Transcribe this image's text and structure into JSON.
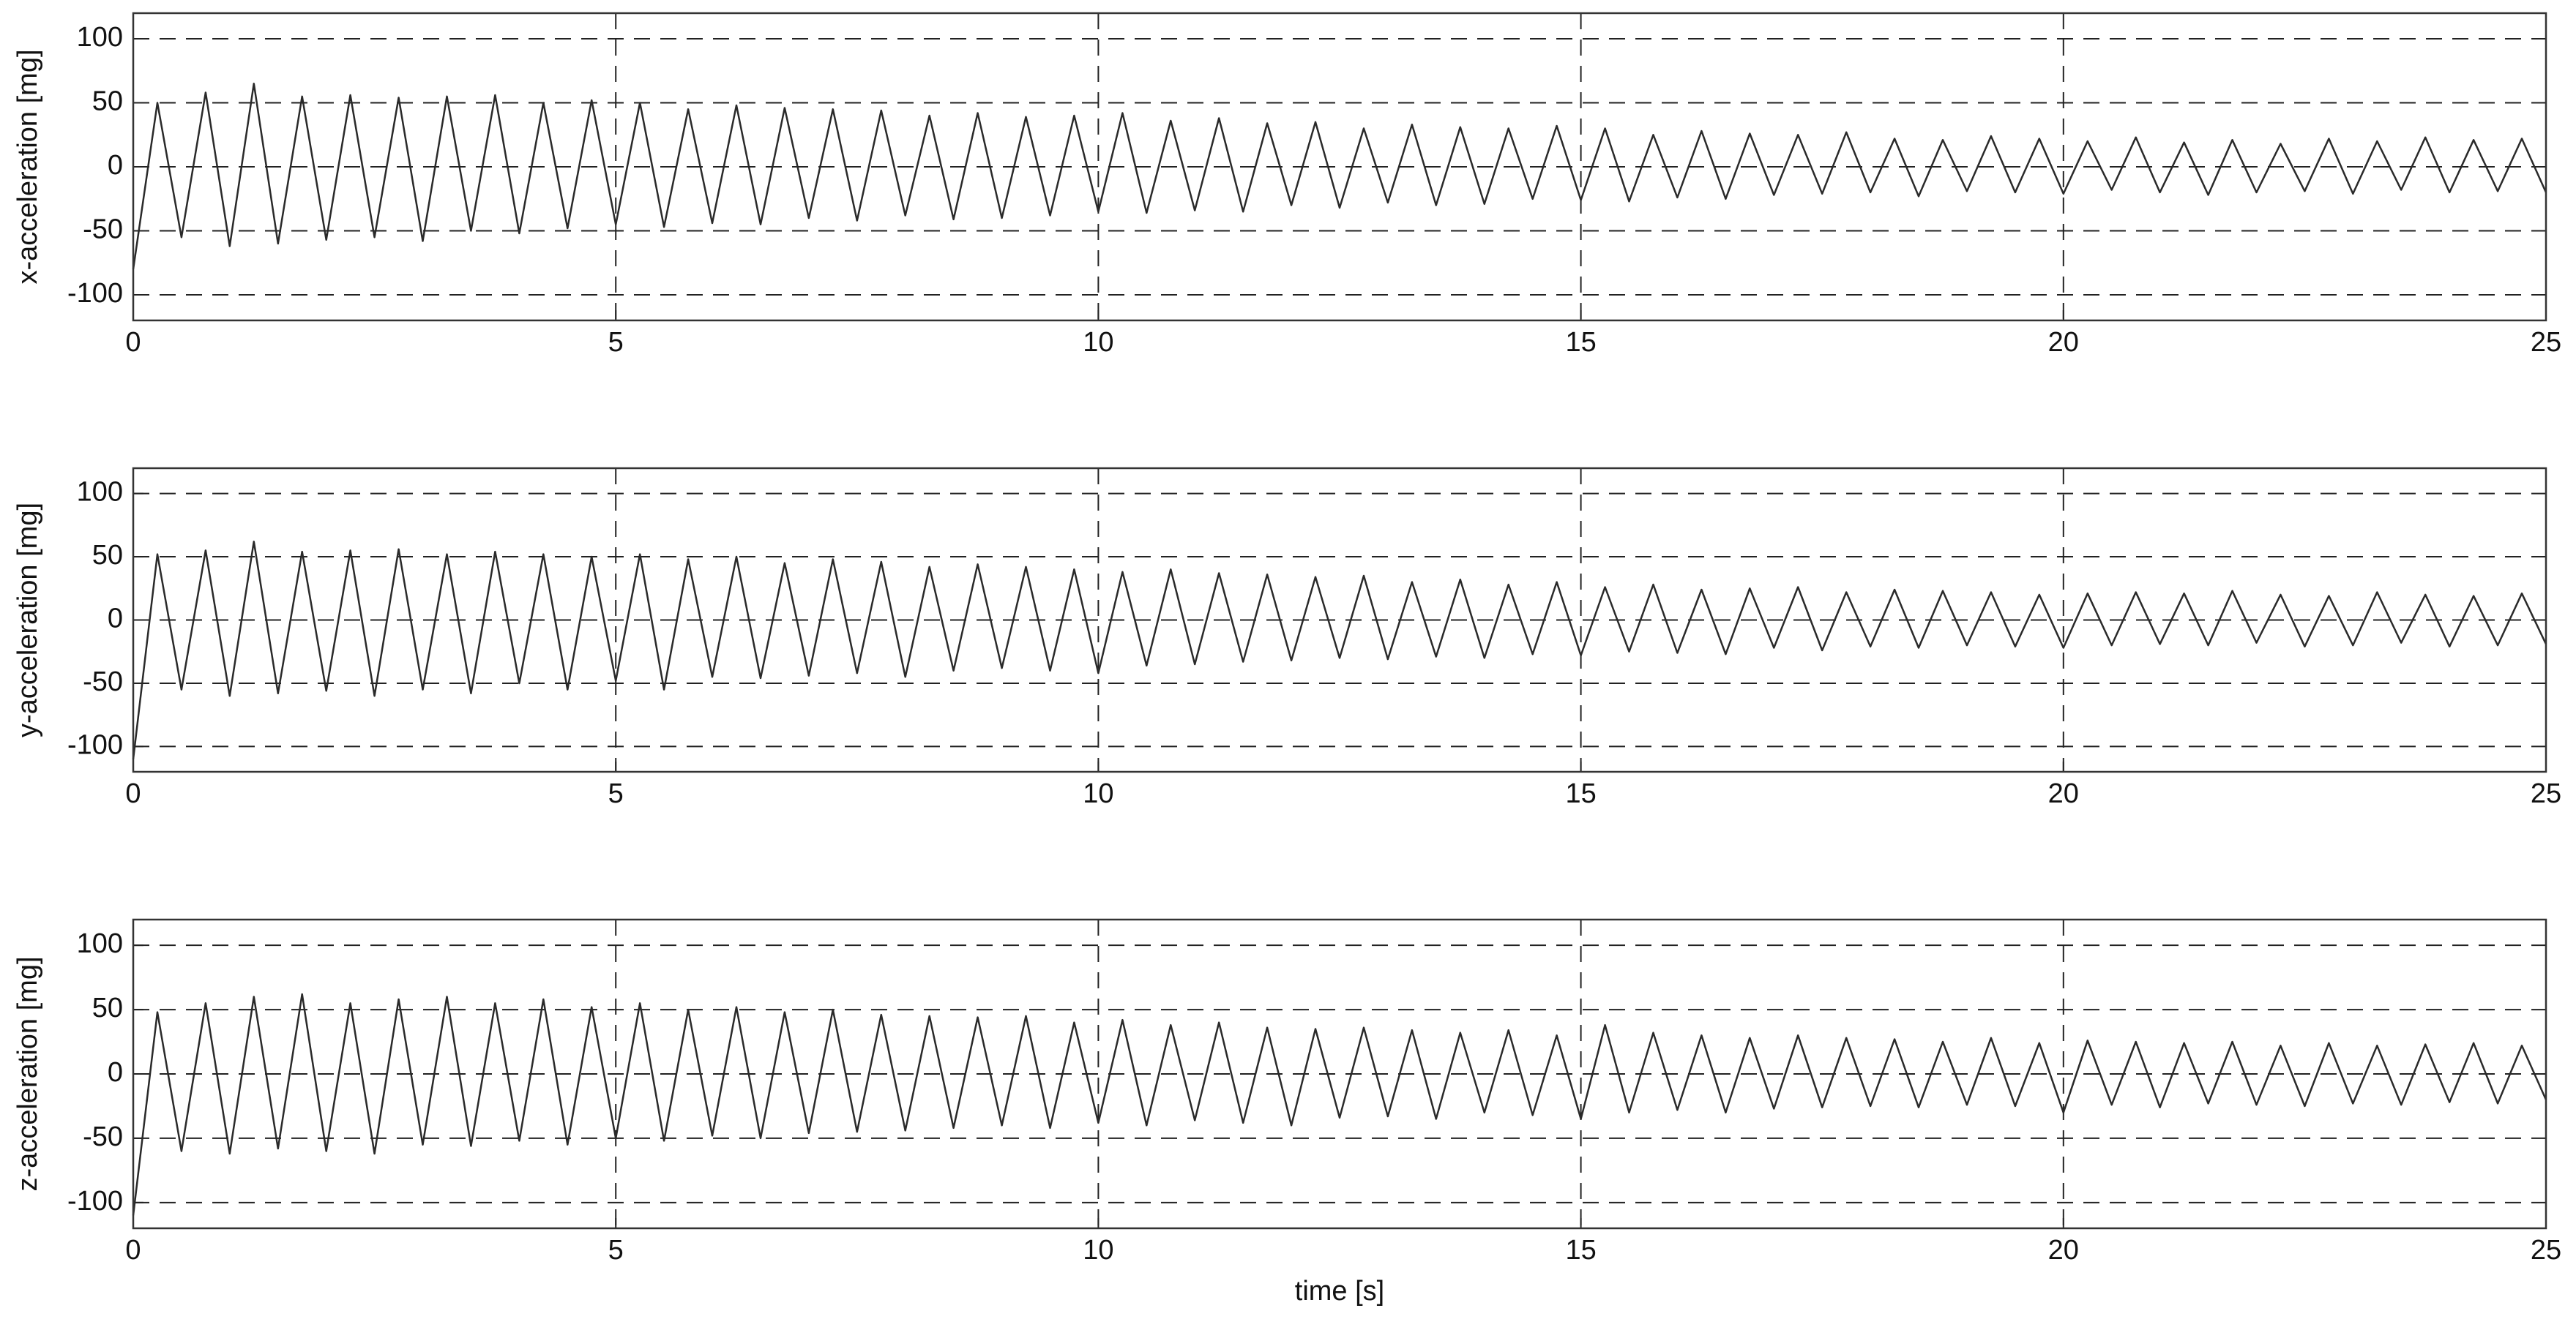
{
  "chart_data": [
    {
      "type": "line",
      "ylabel": "x-acceleration [mg]",
      "xlim": [
        0,
        25
      ],
      "ylim": [
        -120,
        120
      ],
      "xticks": [
        0,
        5,
        10,
        15,
        20,
        25
      ],
      "yticks": [
        -100,
        -50,
        0,
        50,
        100
      ],
      "grid": true,
      "x": [
        0,
        0.25,
        0.5,
        0.75,
        1,
        1.25,
        1.5,
        1.75,
        2,
        2.25,
        2.5,
        2.75,
        3,
        3.25,
        3.5,
        3.75,
        4,
        4.25,
        4.5,
        4.75,
        5,
        5.25,
        5.5,
        5.75,
        6,
        6.25,
        6.5,
        6.75,
        7,
        7.25,
        7.5,
        7.75,
        8,
        8.25,
        8.5,
        8.75,
        9,
        9.25,
        9.5,
        9.75,
        10,
        10.25,
        10.5,
        10.75,
        11,
        11.25,
        11.5,
        11.75,
        12,
        12.25,
        12.5,
        12.75,
        13,
        13.25,
        13.5,
        13.75,
        14,
        14.25,
        14.5,
        14.75,
        15,
        15.25,
        15.5,
        15.75,
        16,
        16.25,
        16.5,
        16.75,
        17,
        17.25,
        17.5,
        17.75,
        18,
        18.25,
        18.5,
        18.75,
        19,
        19.25,
        19.5,
        19.75,
        20,
        20.25,
        20.5,
        20.75,
        21,
        21.25,
        21.5,
        21.75,
        22,
        22.25,
        22.5,
        22.75,
        23,
        23.25,
        23.5,
        23.75,
        24,
        24.25,
        24.5,
        24.75,
        25
      ],
      "series": [
        {
          "name": "x-acceleration",
          "color": "#2a2a2a",
          "values": [
            -80,
            50,
            -55,
            58,
            -62,
            65,
            -60,
            55,
            -57,
            56,
            -55,
            54,
            -58,
            55,
            -50,
            56,
            -52,
            50,
            -48,
            52,
            -45,
            50,
            -47,
            45,
            -44,
            48,
            -45,
            46,
            -40,
            45,
            -42,
            44,
            -38,
            40,
            -41,
            42,
            -40,
            39,
            -38,
            40,
            -35,
            42,
            -36,
            36,
            -34,
            38,
            -35,
            34,
            -30,
            35,
            -32,
            30,
            -28,
            33,
            -30,
            31,
            -29,
            30,
            -25,
            32,
            -26,
            30,
            -27,
            25,
            -24,
            28,
            -25,
            26,
            -22,
            25,
            -21,
            27,
            -20,
            22,
            -23,
            21,
            -19,
            24,
            -20,
            22,
            -21,
            20,
            -18,
            23,
            -20,
            19,
            -22,
            21,
            -20,
            18,
            -19,
            22,
            -21,
            20,
            -18,
            23,
            -20,
            21,
            -19,
            22,
            -20
          ]
        }
      ]
    },
    {
      "type": "line",
      "ylabel": "y-acceleration [mg]",
      "xlim": [
        0,
        25
      ],
      "ylim": [
        -120,
        120
      ],
      "xticks": [
        0,
        5,
        10,
        15,
        20,
        25
      ],
      "yticks": [
        -100,
        -50,
        0,
        50,
        100
      ],
      "grid": true,
      "x": [
        0,
        0.25,
        0.5,
        0.75,
        1,
        1.25,
        1.5,
        1.75,
        2,
        2.25,
        2.5,
        2.75,
        3,
        3.25,
        3.5,
        3.75,
        4,
        4.25,
        4.5,
        4.75,
        5,
        5.25,
        5.5,
        5.75,
        6,
        6.25,
        6.5,
        6.75,
        7,
        7.25,
        7.5,
        7.75,
        8,
        8.25,
        8.5,
        8.75,
        9,
        9.25,
        9.5,
        9.75,
        10,
        10.25,
        10.5,
        10.75,
        11,
        11.25,
        11.5,
        11.75,
        12,
        12.25,
        12.5,
        12.75,
        13,
        13.25,
        13.5,
        13.75,
        14,
        14.25,
        14.5,
        14.75,
        15,
        15.25,
        15.5,
        15.75,
        16,
        16.25,
        16.5,
        16.75,
        17,
        17.25,
        17.5,
        17.75,
        18,
        18.25,
        18.5,
        18.75,
        19,
        19.25,
        19.5,
        19.75,
        20,
        20.25,
        20.5,
        20.75,
        21,
        21.25,
        21.5,
        21.75,
        22,
        22.25,
        22.5,
        22.75,
        23,
        23.25,
        23.5,
        23.75,
        24,
        24.25,
        24.5,
        24.75,
        25
      ],
      "series": [
        {
          "name": "y-acceleration",
          "color": "#2a2a2a",
          "values": [
            -110,
            52,
            -55,
            55,
            -60,
            62,
            -58,
            54,
            -56,
            55,
            -60,
            56,
            -55,
            52,
            -58,
            54,
            -50,
            52,
            -55,
            50,
            -48,
            52,
            -55,
            48,
            -45,
            50,
            -46,
            45,
            -44,
            48,
            -42,
            46,
            -45,
            42,
            -40,
            44,
            -38,
            42,
            -40,
            40,
            -42,
            38,
            -36,
            40,
            -35,
            37,
            -33,
            36,
            -32,
            34,
            -30,
            35,
            -31,
            30,
            -29,
            32,
            -30,
            28,
            -27,
            30,
            -28,
            26,
            -25,
            28,
            -26,
            24,
            -27,
            25,
            -22,
            26,
            -24,
            22,
            -21,
            24,
            -22,
            23,
            -20,
            22,
            -21,
            20,
            -22,
            21,
            -20,
            22,
            -19,
            21,
            -20,
            23,
            -18,
            20,
            -21,
            19,
            -20,
            22,
            -18,
            20,
            -21,
            19,
            -20,
            21,
            -19
          ]
        }
      ]
    },
    {
      "type": "line",
      "ylabel": "z-acceleration [mg]",
      "xlabel": "time [s]",
      "xlim": [
        0,
        25
      ],
      "ylim": [
        -120,
        120
      ],
      "xticks": [
        0,
        5,
        10,
        15,
        20,
        25
      ],
      "yticks": [
        -100,
        -50,
        0,
        50,
        100
      ],
      "grid": true,
      "x": [
        0,
        0.25,
        0.5,
        0.75,
        1,
        1.25,
        1.5,
        1.75,
        2,
        2.25,
        2.5,
        2.75,
        3,
        3.25,
        3.5,
        3.75,
        4,
        4.25,
        4.5,
        4.75,
        5,
        5.25,
        5.5,
        5.75,
        6,
        6.25,
        6.5,
        6.75,
        7,
        7.25,
        7.5,
        7.75,
        8,
        8.25,
        8.5,
        8.75,
        9,
        9.25,
        9.5,
        9.75,
        10,
        10.25,
        10.5,
        10.75,
        11,
        11.25,
        11.5,
        11.75,
        12,
        12.25,
        12.5,
        12.75,
        13,
        13.25,
        13.5,
        13.75,
        14,
        14.25,
        14.5,
        14.75,
        15,
        15.25,
        15.5,
        15.75,
        16,
        16.25,
        16.5,
        16.75,
        17,
        17.25,
        17.5,
        17.75,
        18,
        18.25,
        18.5,
        18.75,
        19,
        19.25,
        19.5,
        19.75,
        20,
        20.25,
        20.5,
        20.75,
        21,
        21.25,
        21.5,
        21.75,
        22,
        22.25,
        22.5,
        22.75,
        23,
        23.25,
        23.5,
        23.75,
        24,
        24.25,
        24.5,
        24.75,
        25
      ],
      "series": [
        {
          "name": "z-acceleration",
          "color": "#2a2a2a",
          "values": [
            -110,
            48,
            -60,
            55,
            -62,
            60,
            -58,
            62,
            -60,
            55,
            -62,
            58,
            -55,
            60,
            -56,
            55,
            -52,
            58,
            -55,
            52,
            -50,
            55,
            -52,
            50,
            -48,
            52,
            -50,
            48,
            -46,
            50,
            -45,
            46,
            -44,
            45,
            -42,
            44,
            -40,
            45,
            -42,
            40,
            -38,
            42,
            -40,
            38,
            -36,
            40,
            -38,
            36,
            -40,
            35,
            -34,
            36,
            -33,
            34,
            -35,
            32,
            -30,
            34,
            -32,
            30,
            -35,
            38,
            -30,
            32,
            -28,
            30,
            -30,
            28,
            -27,
            30,
            -26,
            28,
            -25,
            27,
            -26,
            25,
            -24,
            28,
            -25,
            24,
            -30,
            26,
            -24,
            25,
            -26,
            24,
            -23,
            25,
            -24,
            22,
            -25,
            24,
            -23,
            22,
            -24,
            23,
            -22,
            24,
            -23,
            22,
            -20
          ]
        }
      ]
    }
  ]
}
